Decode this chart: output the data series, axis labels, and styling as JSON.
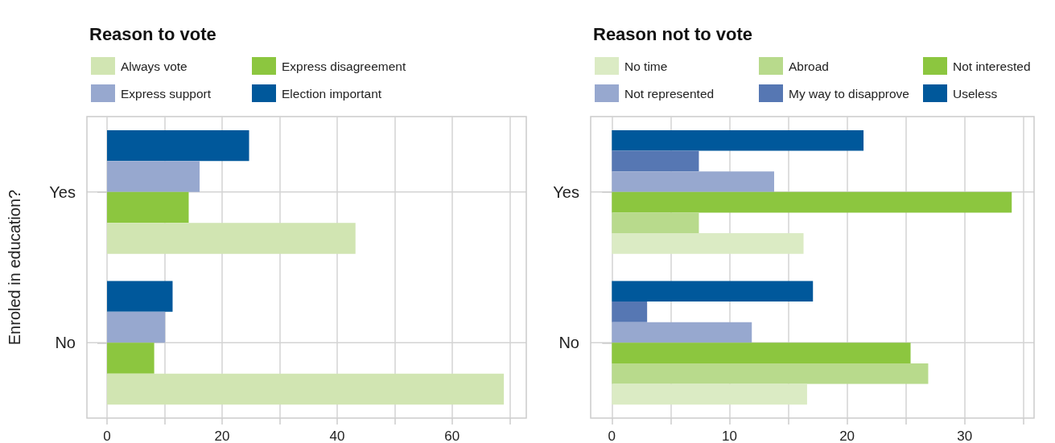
{
  "chart_data": [
    {
      "type": "bar",
      "orientation": "horizontal",
      "title": "Reason to vote",
      "ylabel": "Enroled in education?",
      "categories": [
        "Yes",
        "No"
      ],
      "series": [
        {
          "name": "Always vote",
          "color": "#d1e5b2",
          "values": [
            43.2,
            69.0
          ]
        },
        {
          "name": "Express disagreement",
          "color": "#8cc63f",
          "values": [
            14.2,
            8.2
          ]
        },
        {
          "name": "Express support",
          "color": "#97a8cf",
          "values": [
            16.1,
            10.1
          ]
        },
        {
          "name": "Election important",
          "color": "#00589b",
          "values": [
            24.7,
            11.4
          ]
        }
      ],
      "xlim": [
        -3.5,
        72.9
      ],
      "xticks": [
        0,
        {
          "value": 10,
          "label": null
        },
        20,
        {
          "value": 30,
          "label": null
        },
        40,
        {
          "value": 50,
          "label": null
        },
        60,
        {
          "value": 70,
          "label": null
        }
      ],
      "grid": true,
      "legend": "top"
    },
    {
      "type": "bar",
      "orientation": "horizontal",
      "title": "Reason not to vote",
      "categories": [
        "Yes",
        "No"
      ],
      "series": [
        {
          "name": "No time",
          "color": "#dbebc4",
          "values": [
            16.3,
            16.6
          ]
        },
        {
          "name": "Abroad",
          "color": "#b8da8c",
          "values": [
            7.4,
            26.9
          ]
        },
        {
          "name": "Not interested",
          "color": "#8cc63f",
          "values": [
            34.0,
            25.4
          ]
        },
        {
          "name": "Not represented",
          "color": "#97a8cf",
          "values": [
            13.8,
            11.9
          ]
        },
        {
          "name": "My way to disapprove",
          "color": "#5677b3",
          "values": [
            7.4,
            3.0
          ]
        },
        {
          "name": "Useless",
          "color": "#00589b",
          "values": [
            21.4,
            17.1
          ]
        }
      ],
      "xlim": [
        -1.8,
        35.9
      ],
      "xticks": [
        0,
        {
          "value": 5,
          "label": null
        },
        10,
        {
          "value": 15,
          "label": null
        },
        20,
        {
          "value": 25,
          "label": null
        },
        30,
        {
          "value": 35,
          "label": null
        }
      ],
      "grid": true,
      "legend": "top"
    }
  ]
}
